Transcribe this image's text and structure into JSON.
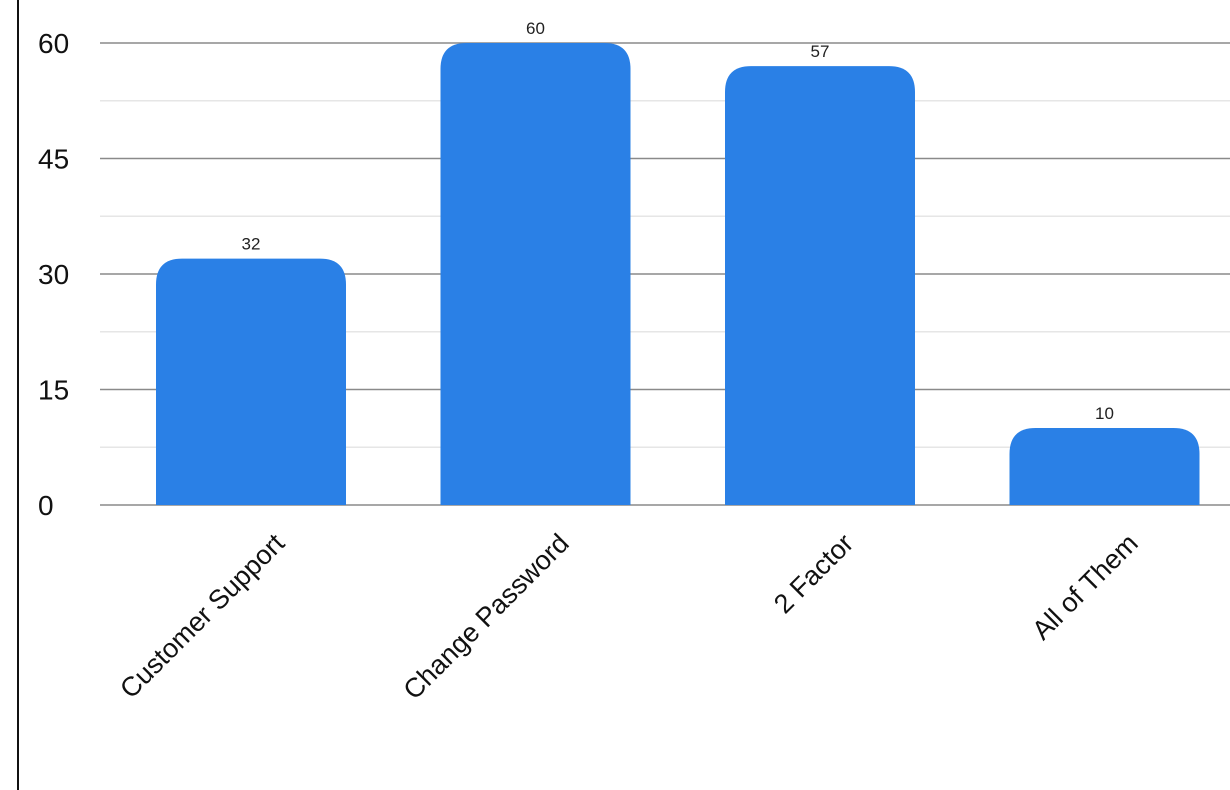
{
  "chart_data": {
    "type": "bar",
    "title": "",
    "xlabel": "",
    "ylabel": "",
    "categories": [
      "Customer Support",
      "Change Password",
      "2 Factor",
      "All of Them"
    ],
    "values": [
      32,
      60,
      57,
      10
    ],
    "ylim": [
      0,
      60
    ],
    "yticks": [
      0,
      15,
      30,
      45,
      60
    ],
    "grid": true,
    "legend": "none",
    "data_labels": true,
    "colors": {
      "bar": "#2a80e6",
      "major_grid": "#8a8a8a",
      "minor_grid": "#e6e6e6",
      "axis": "#111111"
    }
  }
}
